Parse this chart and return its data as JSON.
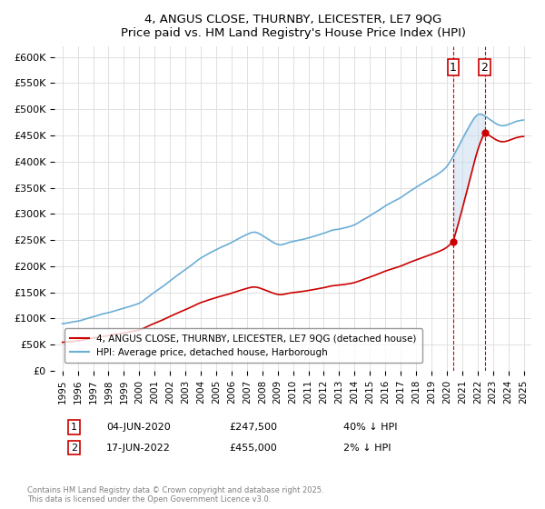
{
  "title": "4, ANGUS CLOSE, THURNBY, LEICESTER, LE7 9QG",
  "subtitle": "Price paid vs. HM Land Registry's House Price Index (HPI)",
  "hpi_label": "HPI: Average price, detached house, Harborough",
  "price_label": "4, ANGUS CLOSE, THURNBY, LEICESTER, LE7 9QG (detached house)",
  "copyright": "Contains HM Land Registry data © Crown copyright and database right 2025.\nThis data is licensed under the Open Government Licence v3.0.",
  "hpi_color": "#6baed6",
  "price_color": "#cc0000",
  "marker_color": "#cc0000",
  "shade_color": "#c6dbef",
  "dashed_line_color": "#cc0000",
  "annotation1": {
    "label": "1",
    "date": "04-JUN-2020",
    "price": "£247,500",
    "change": "40% ↓ HPI",
    "x": 2020.42
  },
  "annotation2": {
    "label": "2",
    "date": "17-JUN-2022",
    "price": "£455,000",
    "change": "2% ↓ HPI",
    "x": 2022.46
  },
  "ylim": [
    0,
    620000
  ],
  "yticks": [
    0,
    50000,
    100000,
    150000,
    200000,
    250000,
    300000,
    350000,
    400000,
    450000,
    500000,
    550000,
    600000
  ],
  "xlim": [
    1994.5,
    2025.5
  ],
  "background_color": "#ffffff",
  "grid_color": "#e0e0e0"
}
